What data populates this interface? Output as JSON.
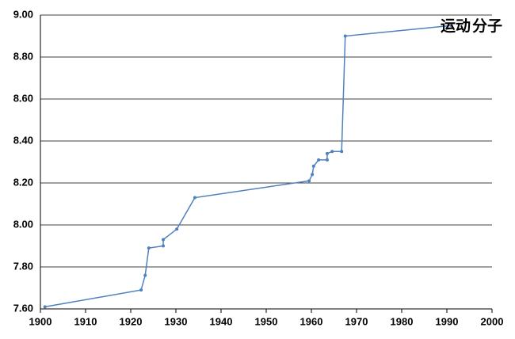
{
  "chart_data": {
    "type": "line",
    "x": [
      1901,
      1922.3,
      1923.2,
      1924,
      1927.2,
      1927.2,
      1930.2,
      1934.2,
      1959.5,
      1960.2,
      1960.5,
      1961.6,
      1963.5,
      1963.5,
      1964.6,
      1966.7,
      1967.5,
      1991
    ],
    "series": [
      {
        "color": "#4f81bd",
        "values": [
          7.61,
          7.69,
          7.76,
          7.89,
          7.9,
          7.93,
          7.98,
          8.13,
          8.21,
          8.24,
          8.28,
          8.31,
          8.31,
          8.34,
          8.35,
          8.35,
          8.9,
          8.95
        ]
      }
    ],
    "xlim": [
      1900,
      2000
    ],
    "xticks": [
      1900,
      1910,
      1920,
      1930,
      1940,
      1950,
      1960,
      1970,
      1980,
      1990,
      2000
    ],
    "ylim": [
      7.6,
      9.0
    ],
    "yticks": [
      {
        "value": 7.6,
        "label": "7.60"
      },
      {
        "value": 7.8,
        "label": "7.80"
      },
      {
        "value": 8.0,
        "label": "8.00"
      },
      {
        "value": 8.2,
        "label": "8.20"
      },
      {
        "value": 8.4,
        "label": "8.40"
      },
      {
        "value": 8.6,
        "label": "8.60"
      },
      {
        "value": 8.8,
        "label": "8.80"
      },
      {
        "value": 9.0,
        "label": "9.00"
      }
    ],
    "grid": true,
    "annotations": [
      {
        "text": "运动",
        "color": "#f08a24"
      },
      {
        "text": "分子",
        "color": "#2a7fd4"
      }
    ]
  }
}
